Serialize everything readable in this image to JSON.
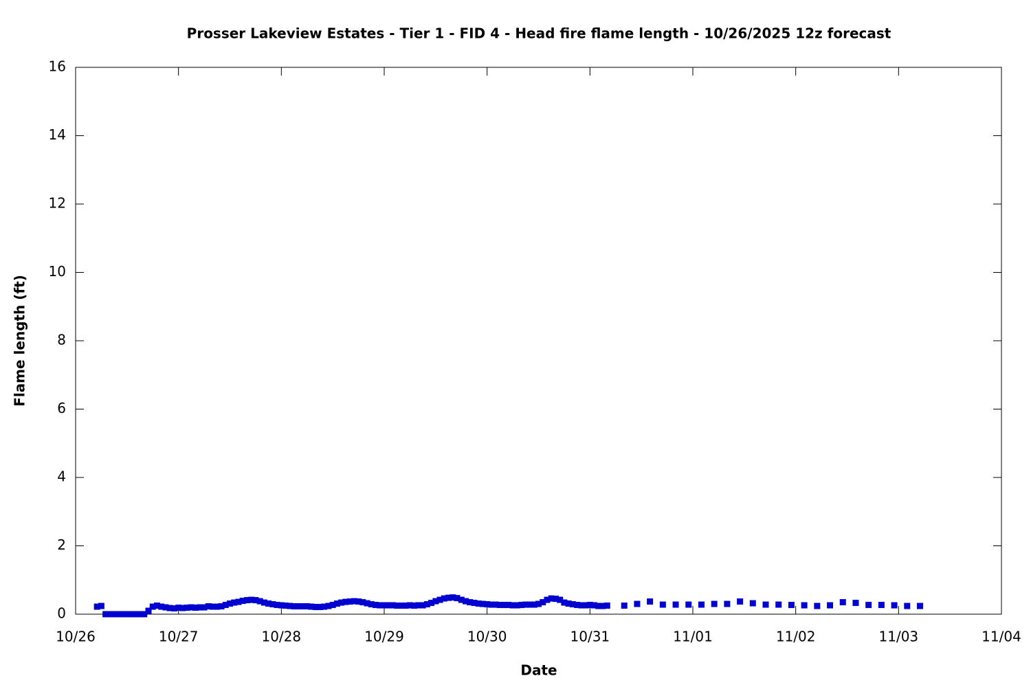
{
  "chart_data": {
    "type": "scatter",
    "title": "Prosser Lakeview Estates - Tier 1 - FID 4 - Head fire flame length - 10/26/2025 12z forecast",
    "x_label": "Date",
    "y_label": "Flame length (ft)",
    "xlim": [
      0,
      216
    ],
    "ylim": [
      0,
      16
    ],
    "xticks": [
      {
        "value": 0,
        "label": "10/26"
      },
      {
        "value": 24,
        "label": "10/27"
      },
      {
        "value": 48,
        "label": "10/28"
      },
      {
        "value": 72,
        "label": "10/29"
      },
      {
        "value": 96,
        "label": "10/30"
      },
      {
        "value": 120,
        "label": "10/31"
      },
      {
        "value": 144,
        "label": "11/01"
      },
      {
        "value": 168,
        "label": "11/02"
      },
      {
        "value": 192,
        "label": "11/03"
      },
      {
        "value": 216,
        "label": "11/04"
      }
    ],
    "yticks": [
      0,
      2,
      4,
      6,
      8,
      10,
      12,
      14,
      16
    ],
    "grid": false,
    "series": [
      {
        "color": "#0000d0",
        "x": [
          5,
          6,
          7,
          8,
          9,
          10,
          11,
          12,
          13,
          14,
          15,
          16,
          17,
          18,
          19,
          20,
          21,
          22,
          23,
          24,
          25,
          26,
          27,
          28,
          29,
          30,
          31,
          32,
          33,
          34,
          35,
          36,
          37,
          38,
          39,
          40,
          41,
          42,
          43,
          44,
          45,
          46,
          47,
          48,
          49,
          50,
          51,
          52,
          53,
          54,
          55,
          56,
          57,
          58,
          59,
          60,
          61,
          62,
          63,
          64,
          65,
          66,
          67,
          68,
          69,
          70,
          71,
          72,
          73,
          74,
          75,
          76,
          77,
          78,
          79,
          80,
          81,
          82,
          83,
          84,
          85,
          86,
          87,
          88,
          89,
          90,
          91,
          92,
          93,
          94,
          95,
          96,
          97,
          98,
          99,
          100,
          101,
          102,
          103,
          104,
          105,
          106,
          107,
          108,
          109,
          110,
          111,
          112,
          113,
          114,
          115,
          116,
          117,
          118,
          119,
          120,
          121,
          122,
          123,
          124,
          128,
          131,
          134,
          137,
          140,
          143,
          146,
          149,
          152,
          155,
          158,
          161,
          164,
          167,
          170,
          173,
          176,
          179,
          182,
          185,
          188,
          191,
          194,
          197
        ],
        "values": [
          0.22,
          0.24,
          0,
          0,
          0,
          0,
          0,
          0,
          0,
          0,
          0,
          0,
          0.1,
          0.22,
          0.25,
          0.22,
          0.2,
          0.18,
          0.17,
          0.19,
          0.18,
          0.19,
          0.2,
          0.19,
          0.2,
          0.2,
          0.23,
          0.22,
          0.22,
          0.23,
          0.27,
          0.31,
          0.34,
          0.36,
          0.39,
          0.41,
          0.42,
          0.41,
          0.38,
          0.34,
          0.31,
          0.29,
          0.27,
          0.26,
          0.25,
          0.24,
          0.23,
          0.23,
          0.23,
          0.23,
          0.22,
          0.21,
          0.21,
          0.22,
          0.24,
          0.27,
          0.31,
          0.34,
          0.36,
          0.37,
          0.38,
          0.37,
          0.35,
          0.32,
          0.29,
          0.27,
          0.26,
          0.26,
          0.26,
          0.26,
          0.25,
          0.25,
          0.25,
          0.26,
          0.25,
          0.26,
          0.26,
          0.29,
          0.33,
          0.38,
          0.42,
          0.46,
          0.48,
          0.49,
          0.47,
          0.42,
          0.38,
          0.35,
          0.33,
          0.31,
          0.3,
          0.29,
          0.28,
          0.28,
          0.27,
          0.27,
          0.27,
          0.26,
          0.26,
          0.27,
          0.28,
          0.28,
          0.28,
          0.3,
          0.35,
          0.42,
          0.46,
          0.45,
          0.42,
          0.34,
          0.31,
          0.29,
          0.27,
          0.26,
          0.26,
          0.27,
          0.26,
          0.24,
          0.24,
          0.25,
          0.25,
          0.3,
          0.37,
          0.28,
          0.28,
          0.28,
          0.28,
          0.3,
          0.3,
          0.37,
          0.32,
          0.28,
          0.28,
          0.27,
          0.26,
          0.24,
          0.26,
          0.35,
          0.33,
          0.27,
          0.27,
          0.26,
          0.24,
          0.24
        ]
      }
    ]
  }
}
